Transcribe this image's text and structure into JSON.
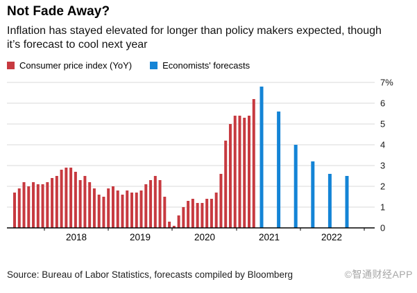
{
  "header": {
    "title": "Not Fade Away?",
    "subtitle": "Inflation has stayed elevated for longer than policy makers expected, though it’s forecast to cool next year"
  },
  "legend": [
    {
      "label": "Consumer price index (YoY)",
      "color": "#c73a40"
    },
    {
      "label": "Economists' forecasts",
      "color": "#1484d6"
    }
  ],
  "chart_data": {
    "type": "bar",
    "title": "Not Fade Away?",
    "y_axis": {
      "side": "right",
      "ylim": [
        0,
        7.3
      ],
      "grid": true,
      "tick_values": [
        0,
        1,
        2,
        3,
        4,
        5,
        6,
        7
      ],
      "tick_labels": [
        "0",
        "1",
        "2",
        "3",
        "4",
        "5",
        "6",
        "7%"
      ]
    },
    "x_axis": {
      "year_labels": [
        "2018",
        "2019",
        "2020",
        "2021",
        "2022"
      ]
    },
    "series": [
      {
        "name": "Consumer price index (YoY)",
        "color": "#c73a40",
        "cadence": "monthly",
        "values": [
          1.7,
          1.9,
          2.2,
          2.0,
          2.2,
          2.1,
          2.1,
          2.2,
          2.4,
          2.5,
          2.8,
          2.9,
          2.9,
          2.7,
          2.3,
          2.5,
          2.2,
          1.9,
          1.6,
          1.5,
          1.9,
          2.0,
          1.8,
          1.6,
          1.8,
          1.7,
          1.7,
          1.8,
          2.1,
          2.3,
          2.5,
          2.3,
          1.5,
          0.3,
          0.1,
          0.6,
          1.0,
          1.3,
          1.4,
          1.2,
          1.2,
          1.4,
          1.4,
          1.7,
          2.6,
          4.2,
          5.0,
          5.4,
          5.4,
          5.3,
          5.4,
          6.2
        ]
      },
      {
        "name": "Economists' forecasts",
        "color": "#1484d6",
        "cadence": "quarterly",
        "values": [
          6.8,
          5.6,
          4.0,
          3.2,
          2.6,
          2.5
        ]
      }
    ]
  },
  "footer": {
    "source": "Source: Bureau of Labor Statistics, forecasts compiled by Bloomberg",
    "watermark": "©智通财经APP"
  }
}
